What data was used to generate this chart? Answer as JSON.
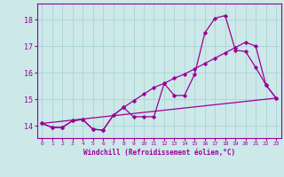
{
  "xlabel": "Windchill (Refroidissement éolien,°C)",
  "bg_color": "#cce8e8",
  "line_color": "#990099",
  "x_ticks": [
    0,
    1,
    2,
    3,
    4,
    5,
    6,
    7,
    8,
    9,
    10,
    11,
    12,
    13,
    14,
    15,
    16,
    17,
    18,
    19,
    20,
    21,
    22,
    23
  ],
  "y_ticks": [
    14,
    15,
    16,
    17,
    18
  ],
  "ylim": [
    13.55,
    18.6
  ],
  "xlim": [
    -0.5,
    23.5
  ],
  "line1_x": [
    0,
    1,
    2,
    3,
    4,
    5,
    6,
    7,
    8,
    9,
    10,
    11,
    12,
    13,
    14,
    15,
    16,
    17,
    18,
    19,
    20,
    21,
    22,
    23
  ],
  "line1_y": [
    14.1,
    13.95,
    13.95,
    14.2,
    14.25,
    13.88,
    13.85,
    14.4,
    14.7,
    14.35,
    14.35,
    14.35,
    15.6,
    15.15,
    15.15,
    15.95,
    17.5,
    18.05,
    18.15,
    16.85,
    16.8,
    16.2,
    15.55,
    15.05
  ],
  "line2_x": [
    0,
    1,
    2,
    3,
    4,
    5,
    6,
    7,
    8,
    9,
    10,
    11,
    12,
    13,
    14,
    15,
    16,
    17,
    18,
    19,
    20,
    21,
    22,
    23
  ],
  "line2_y": [
    14.1,
    13.95,
    13.95,
    14.2,
    14.25,
    13.88,
    13.85,
    14.4,
    14.7,
    14.95,
    15.2,
    15.45,
    15.6,
    15.8,
    15.95,
    16.15,
    16.35,
    16.55,
    16.75,
    16.95,
    17.15,
    17.0,
    15.55,
    15.05
  ],
  "line3_x": [
    0,
    23
  ],
  "line3_y": [
    14.1,
    15.05
  ],
  "grid_color": "#aad4d4",
  "marker": "D",
  "markersize": 2.2,
  "lw": 0.9
}
